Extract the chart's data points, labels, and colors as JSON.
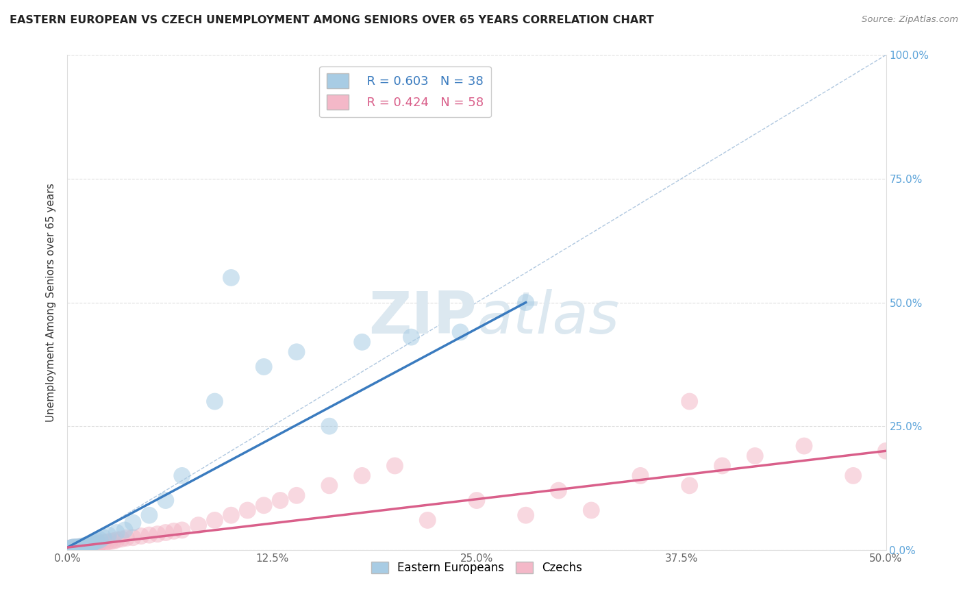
{
  "title": "EASTERN EUROPEAN VS CZECH UNEMPLOYMENT AMONG SENIORS OVER 65 YEARS CORRELATION CHART",
  "source": "Source: ZipAtlas.com",
  "xlabel_ticks": [
    "0.0%",
    "12.5%",
    "25.0%",
    "37.5%",
    "50.0%"
  ],
  "xlabel_vals": [
    0,
    0.125,
    0.25,
    0.375,
    0.5
  ],
  "ylabel_ticks": [
    "0.0%",
    "25.0%",
    "50.0%",
    "75.0%",
    "100.0%"
  ],
  "ylabel_vals": [
    0,
    0.25,
    0.5,
    0.75,
    1.0
  ],
  "xlim": [
    0,
    0.5
  ],
  "ylim": [
    0,
    1.0
  ],
  "ylabel": "Unemployment Among Seniors over 65 years",
  "legend_blue_R": "R = 0.603",
  "legend_blue_N": "N = 38",
  "legend_pink_R": "R = 0.424",
  "legend_pink_N": "N = 58",
  "blue_color": "#a8cce4",
  "pink_color": "#f4b8c8",
  "blue_line_color": "#3a7bbf",
  "pink_line_color": "#d95f8a",
  "diag_line_color": "#b0c8e0",
  "watermark_color": "#dce8f0",
  "background_color": "#ffffff",
  "blue_scatter_x": [
    0.001,
    0.002,
    0.003,
    0.003,
    0.004,
    0.005,
    0.005,
    0.006,
    0.007,
    0.008,
    0.009,
    0.01,
    0.01,
    0.011,
    0.012,
    0.013,
    0.014,
    0.015,
    0.016,
    0.018,
    0.02,
    0.022,
    0.025,
    0.03,
    0.035,
    0.04,
    0.05,
    0.06,
    0.07,
    0.09,
    0.12,
    0.14,
    0.18,
    0.21,
    0.24,
    0.28,
    0.1,
    0.16
  ],
  "blue_scatter_y": [
    0.003,
    0.004,
    0.005,
    0.004,
    0.006,
    0.005,
    0.004,
    0.006,
    0.005,
    0.007,
    0.006,
    0.008,
    0.007,
    0.009,
    0.01,
    0.011,
    0.012,
    0.013,
    0.015,
    0.018,
    0.02,
    0.025,
    0.03,
    0.035,
    0.04,
    0.055,
    0.07,
    0.1,
    0.15,
    0.3,
    0.37,
    0.4,
    0.42,
    0.43,
    0.44,
    0.5,
    0.55,
    0.25
  ],
  "pink_scatter_x": [
    0.001,
    0.002,
    0.003,
    0.004,
    0.005,
    0.005,
    0.006,
    0.007,
    0.008,
    0.009,
    0.01,
    0.011,
    0.012,
    0.013,
    0.014,
    0.015,
    0.016,
    0.017,
    0.018,
    0.019,
    0.02,
    0.022,
    0.024,
    0.026,
    0.028,
    0.03,
    0.033,
    0.036,
    0.04,
    0.045,
    0.05,
    0.055,
    0.06,
    0.065,
    0.07,
    0.08,
    0.09,
    0.1,
    0.11,
    0.12,
    0.13,
    0.14,
    0.16,
    0.18,
    0.2,
    0.25,
    0.3,
    0.35,
    0.38,
    0.4,
    0.42,
    0.45,
    0.48,
    0.5,
    0.38,
    0.32,
    0.28,
    0.22
  ],
  "pink_scatter_y": [
    0.003,
    0.004,
    0.003,
    0.005,
    0.004,
    0.005,
    0.004,
    0.006,
    0.005,
    0.007,
    0.006,
    0.007,
    0.008,
    0.009,
    0.01,
    0.011,
    0.012,
    0.011,
    0.013,
    0.012,
    0.014,
    0.015,
    0.016,
    0.017,
    0.018,
    0.02,
    0.022,
    0.024,
    0.025,
    0.028,
    0.03,
    0.032,
    0.035,
    0.038,
    0.04,
    0.05,
    0.06,
    0.07,
    0.08,
    0.09,
    0.1,
    0.11,
    0.13,
    0.15,
    0.17,
    0.1,
    0.12,
    0.15,
    0.3,
    0.17,
    0.19,
    0.21,
    0.15,
    0.2,
    0.13,
    0.08,
    0.07,
    0.06
  ],
  "blue_line_x0": 0.0,
  "blue_line_x1": 0.28,
  "blue_line_y0": 0.005,
  "blue_line_y1": 0.5,
  "pink_line_x0": 0.0,
  "pink_line_x1": 0.5,
  "pink_line_y0": 0.005,
  "pink_line_y1": 0.2
}
